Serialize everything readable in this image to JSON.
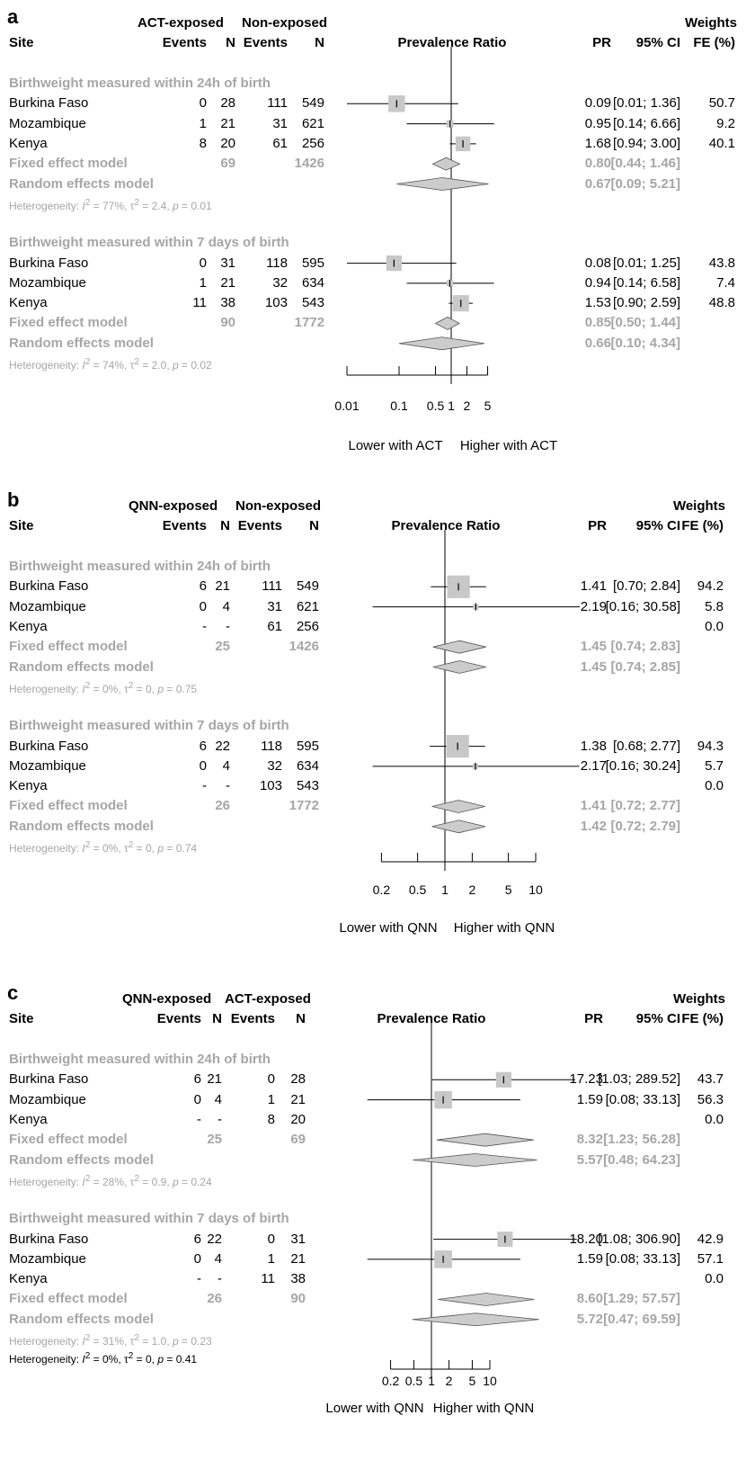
{
  "chart_data": [
    {
      "type": "forest",
      "panel_label": "a",
      "group_headers": [
        "ACT-exposed",
        "Non-exposed"
      ],
      "columns": {
        "site": "Site",
        "events1": "Events",
        "n1": "N",
        "events2": "Events",
        "n2": "N",
        "plot": "Prevalence Ratio",
        "pr": "PR",
        "ci": "95% CI",
        "weights_top": "Weights",
        "weights": "FE (%)"
      },
      "x_scale": "log",
      "xlim": [
        0.01,
        7
      ],
      "ticks": [
        "0.01",
        "0.1",
        "0.5",
        "1",
        "2",
        "5"
      ],
      "tick_values": [
        0.01,
        0.1,
        0.5,
        1,
        2,
        5
      ],
      "xlabel_left": "Lower with ACT",
      "xlabel_right": "Higher with ACT",
      "subgroups": [
        {
          "title": "Birthweight measured within 24h of birth",
          "studies": [
            {
              "site": "Burkina Faso",
              "e1": "0",
              "n1": "28",
              "e2": "111",
              "n2": "549",
              "pr": 0.09,
              "lo": 0.01,
              "hi": 1.36,
              "pr_text": "0.09",
              "ci_text": "[0.01; 1.36]",
              "weight": "50.7"
            },
            {
              "site": "Mozambique",
              "e1": "1",
              "n1": "21",
              "e2": "31",
              "n2": "621",
              "pr": 0.95,
              "lo": 0.14,
              "hi": 6.66,
              "pr_text": "0.95",
              "ci_text": "[0.14; 6.66]",
              "weight": "9.2"
            },
            {
              "site": "Kenya",
              "e1": "8",
              "n1": "20",
              "e2": "61",
              "n2": "256",
              "pr": 1.68,
              "lo": 0.94,
              "hi": 3.0,
              "pr_text": "1.68",
              "ci_text": "[0.94; 3.00]",
              "weight": "40.1"
            }
          ],
          "fixed": {
            "label": "Fixed effect model",
            "n1": "69",
            "n2": "1426",
            "pr": 0.8,
            "lo": 0.44,
            "hi": 1.46,
            "pr_text": "0.80",
            "ci_text": "[0.44; 1.46]"
          },
          "random": {
            "label": "Random effects model",
            "pr": 0.67,
            "lo": 0.09,
            "hi": 5.21,
            "pr_text": "0.67",
            "ci_text": "[0.09; 5.21]"
          },
          "heterogeneity": {
            "prefix": "Heterogeneity: ",
            "i2": "77%",
            "tau2": "2.4",
            "p": "0.01"
          }
        },
        {
          "title": "Birthweight measured within 7 days of birth",
          "studies": [
            {
              "site": "Burkina Faso",
              "e1": "0",
              "n1": "31",
              "e2": "118",
              "n2": "595",
              "pr": 0.08,
              "lo": 0.01,
              "hi": 1.25,
              "pr_text": "0.08",
              "ci_text": "[0.01; 1.25]",
              "weight": "43.8"
            },
            {
              "site": "Mozambique",
              "e1": "1",
              "n1": "21",
              "e2": "32",
              "n2": "634",
              "pr": 0.94,
              "lo": 0.14,
              "hi": 6.58,
              "pr_text": "0.94",
              "ci_text": "[0.14; 6.58]",
              "weight": "7.4"
            },
            {
              "site": "Kenya",
              "e1": "11",
              "n1": "38",
              "e2": "103",
              "n2": "543",
              "pr": 1.53,
              "lo": 0.9,
              "hi": 2.59,
              "pr_text": "1.53",
              "ci_text": "[0.90; 2.59]",
              "weight": "48.8"
            }
          ],
          "fixed": {
            "label": "Fixed effect model",
            "n1": "90",
            "n2": "1772",
            "pr": 0.85,
            "lo": 0.5,
            "hi": 1.44,
            "pr_text": "0.85",
            "ci_text": "[0.50; 1.44]"
          },
          "random": {
            "label": "Random effects model",
            "pr": 0.66,
            "lo": 0.1,
            "hi": 4.34,
            "pr_text": "0.66",
            "ci_text": "[0.10; 4.34]"
          },
          "heterogeneity": {
            "prefix": "Heterogeneity: ",
            "i2": "74%",
            "tau2": "2.0",
            "p": "0.02"
          }
        }
      ]
    },
    {
      "type": "forest",
      "panel_label": "b",
      "group_headers": [
        "QNN-exposed",
        "Non-exposed"
      ],
      "columns": {
        "site": "Site",
        "events1": "Events",
        "n1": "N",
        "events2": "Events",
        "n2": "N",
        "plot": "Prevalence Ratio",
        "pr": "PR",
        "ci": "95% CI",
        "weights_top": "Weights",
        "weights": "FE (%)"
      },
      "x_scale": "log",
      "xlim": [
        0.1,
        12
      ],
      "ticks": [
        "0.2",
        "0.5",
        "1",
        "2",
        "5",
        "10"
      ],
      "tick_values": [
        0.2,
        0.5,
        1,
        2,
        5,
        10
      ],
      "xlabel_left": "Lower with QNN",
      "xlabel_right": "Higher with QNN",
      "subgroups": [
        {
          "title": "Birthweight measured within 24h of birth",
          "studies": [
            {
              "site": "Burkina Faso",
              "e1": "6",
              "n1": "21",
              "e2": "111",
              "n2": "549",
              "pr": 1.41,
              "lo": 0.7,
              "hi": 2.84,
              "pr_text": "1.41",
              "ci_text": "[0.70; 2.84]",
              "weight": "94.2"
            },
            {
              "site": "Mozambique",
              "e1": "0",
              "n1": "4",
              "e2": "31",
              "n2": "621",
              "pr": 2.19,
              "lo": 0.16,
              "hi": 30.58,
              "pr_text": "2.19",
              "ci_text": "[0.16; 30.58]",
              "weight": "5.8"
            },
            {
              "site": "Kenya",
              "e1": "-",
              "n1": "-",
              "e2": "61",
              "n2": "256",
              "pr": null,
              "lo": null,
              "hi": null,
              "pr_text": "",
              "ci_text": "",
              "weight": "0.0"
            }
          ],
          "fixed": {
            "label": "Fixed effect model",
            "n1": "25",
            "n2": "1426",
            "pr": 1.45,
            "lo": 0.74,
            "hi": 2.83,
            "pr_text": "1.45",
            "ci_text": "[0.74; 2.83]"
          },
          "random": {
            "label": "Random effects model",
            "pr": 1.45,
            "lo": 0.74,
            "hi": 2.85,
            "pr_text": "1.45",
            "ci_text": "[0.74; 2.85]"
          },
          "heterogeneity": {
            "prefix": "Heterogeneity: ",
            "i2": "0%",
            "tau2": "0",
            "p": "0.75"
          }
        },
        {
          "title": "Birthweight measured within 7 days of birth",
          "studies": [
            {
              "site": "Burkina Faso",
              "e1": "6",
              "n1": "22",
              "e2": "118",
              "n2": "595",
              "pr": 1.38,
              "lo": 0.68,
              "hi": 2.77,
              "pr_text": "1.38",
              "ci_text": "[0.68; 2.77]",
              "weight": "94.3"
            },
            {
              "site": "Mozambique",
              "e1": "0",
              "n1": "4",
              "e2": "32",
              "n2": "634",
              "pr": 2.17,
              "lo": 0.16,
              "hi": 30.24,
              "pr_text": "2.17",
              "ci_text": "[0.16; 30.24]",
              "weight": "5.7"
            },
            {
              "site": "Kenya",
              "e1": "-",
              "n1": "-",
              "e2": "103",
              "n2": "543",
              "pr": null,
              "lo": null,
              "hi": null,
              "pr_text": "",
              "ci_text": "",
              "weight": "0.0"
            }
          ],
          "fixed": {
            "label": "Fixed effect model",
            "n1": "26",
            "n2": "1772",
            "pr": 1.41,
            "lo": 0.72,
            "hi": 2.77,
            "pr_text": "1.41",
            "ci_text": "[0.72; 2.77]"
          },
          "random": {
            "label": "Random effects model",
            "pr": 1.42,
            "lo": 0.72,
            "hi": 2.79,
            "pr_text": "1.42",
            "ci_text": "[0.72; 2.79]"
          },
          "heterogeneity": {
            "prefix": "Heterogeneity: ",
            "i2": "0%",
            "tau2": "0",
            "p": "0.74"
          }
        }
      ]
    },
    {
      "type": "forest",
      "panel_label": "c",
      "group_headers": [
        "QNN-exposed",
        "ACT-exposed"
      ],
      "columns": {
        "site": "Site",
        "events1": "Events",
        "n1": "N",
        "events2": "Events",
        "n2": "N",
        "plot": "Prevalence Ratio",
        "pr": "PR",
        "ci": "95% CI",
        "weights_top": "Weights",
        "weights": "FE (%)"
      },
      "x_scale": "log",
      "xlim": [
        0.1,
        15
      ],
      "ticks": [
        "0.2",
        "0.5",
        "1",
        "2",
        "5",
        "10"
      ],
      "tick_values": [
        0.2,
        0.5,
        1,
        2,
        5,
        10
      ],
      "xlabel_left": "Lower with QNN",
      "xlabel_right": "Higher with QNN",
      "subgroups": [
        {
          "title": "Birthweight measured within 24h of birth",
          "studies": [
            {
              "site": "Burkina Faso",
              "e1": "6",
              "n1": "21",
              "e2": "0",
              "n2": "28",
              "pr": 17.23,
              "lo": 1.03,
              "hi": 289.52,
              "pr_text": "17.23",
              "ci_text": "[1.03; 289.52]",
              "weight": "43.7"
            },
            {
              "site": "Mozambique",
              "e1": "0",
              "n1": "4",
              "e2": "1",
              "n2": "21",
              "pr": 1.59,
              "lo": 0.08,
              "hi": 33.13,
              "pr_text": "1.59",
              "ci_text": "[0.08; 33.13]",
              "weight": "56.3"
            },
            {
              "site": "Kenya",
              "e1": "-",
              "n1": "-",
              "e2": "8",
              "n2": "20",
              "pr": null,
              "lo": null,
              "hi": null,
              "pr_text": "",
              "ci_text": "",
              "weight": "0.0"
            }
          ],
          "fixed": {
            "label": "Fixed effect model",
            "n1": "25",
            "n2": "69",
            "pr": 8.32,
            "lo": 1.23,
            "hi": 56.28,
            "pr_text": "8.32",
            "ci_text": "[1.23; 56.28]"
          },
          "random": {
            "label": "Random effects model",
            "pr": 5.57,
            "lo": 0.48,
            "hi": 64.23,
            "pr_text": "5.57",
            "ci_text": "[0.48; 64.23]"
          },
          "heterogeneity": {
            "prefix": "Heterogeneity: ",
            "i2": "28%",
            "tau2": "0.9",
            "p": "0.24"
          }
        },
        {
          "title": "Birthweight measured within 7 days of birth",
          "studies": [
            {
              "site": "Burkina Faso",
              "e1": "6",
              "n1": "22",
              "e2": "0",
              "n2": "31",
              "pr": 18.2,
              "lo": 1.08,
              "hi": 306.9,
              "pr_text": "18.20",
              "ci_text": "[1.08; 306.90]",
              "weight": "42.9"
            },
            {
              "site": "Mozambique",
              "e1": "0",
              "n1": "4",
              "e2": "1",
              "n2": "21",
              "pr": 1.59,
              "lo": 0.08,
              "hi": 33.13,
              "pr_text": "1.59",
              "ci_text": "[0.08; 33.13]",
              "weight": "57.1"
            },
            {
              "site": "Kenya",
              "e1": "-",
              "n1": "-",
              "e2": "11",
              "n2": "38",
              "pr": null,
              "lo": null,
              "hi": null,
              "pr_text": "",
              "ci_text": "",
              "weight": "0.0"
            }
          ],
          "fixed": {
            "label": "Fixed effect model",
            "n1": "26",
            "n2": "90",
            "pr": 8.6,
            "lo": 1.29,
            "hi": 57.57,
            "pr_text": "8.60",
            "ci_text": "[1.29; 57.57]"
          },
          "random": {
            "label": "Random effects model",
            "pr": 5.72,
            "lo": 0.47,
            "hi": 69.59,
            "pr_text": "5.72",
            "ci_text": "[0.47; 69.59]"
          },
          "heterogeneity": {
            "prefix": "Heterogeneity: ",
            "i2": "31%",
            "tau2": "1.0",
            "p": "0.23"
          }
        }
      ],
      "overall_heterogeneity": {
        "prefix": "Heterogeneity: ",
        "i2": "0%",
        "tau2": "0",
        "p": "0.41"
      }
    }
  ],
  "colors": {
    "gray_text": "#a6a6a6",
    "box_fill": "#c8c8c8",
    "diamond_fill": "#cccccc",
    "line": "#000000"
  }
}
